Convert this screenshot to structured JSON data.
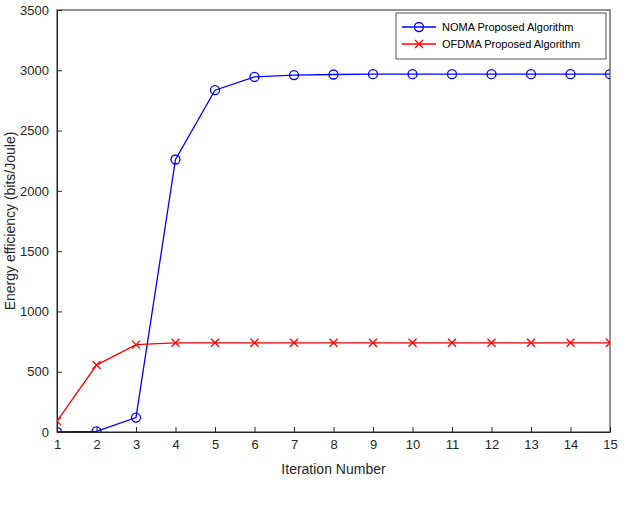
{
  "chart_data": {
    "type": "line",
    "x_label": "Iteration Number",
    "y_label": "Energy efficiency (bits/Joule)",
    "x": [
      1,
      2,
      3,
      4,
      5,
      6,
      7,
      8,
      9,
      10,
      11,
      12,
      13,
      14,
      15
    ],
    "series": [
      {
        "name": "NOMA Proposed Algorithm",
        "color": "#0000ff",
        "marker": "circle",
        "line_style": "solid",
        "values": [
          0,
          5,
          120,
          2260,
          2835,
          2945,
          2960,
          2965,
          2968,
          2968,
          2968,
          2968,
          2968,
          2968,
          2968
        ]
      },
      {
        "name": "OFDMA Proposed Algorithm",
        "color": "#ff0000",
        "marker": "x",
        "line_style": "solid",
        "values": [
          90,
          555,
          725,
          740,
          740,
          740,
          740,
          740,
          740,
          740,
          740,
          740,
          740,
          740,
          740
        ]
      }
    ],
    "xlim": [
      1,
      15
    ],
    "xticks": [
      1,
      2,
      3,
      4,
      5,
      6,
      7,
      8,
      9,
      10,
      11,
      12,
      13,
      14,
      15
    ],
    "ylim": [
      0,
      3500
    ],
    "yticks": [
      0,
      500,
      1000,
      1500,
      2000,
      2500,
      3000,
      3500
    ],
    "grid": false,
    "legend": "top-right"
  }
}
